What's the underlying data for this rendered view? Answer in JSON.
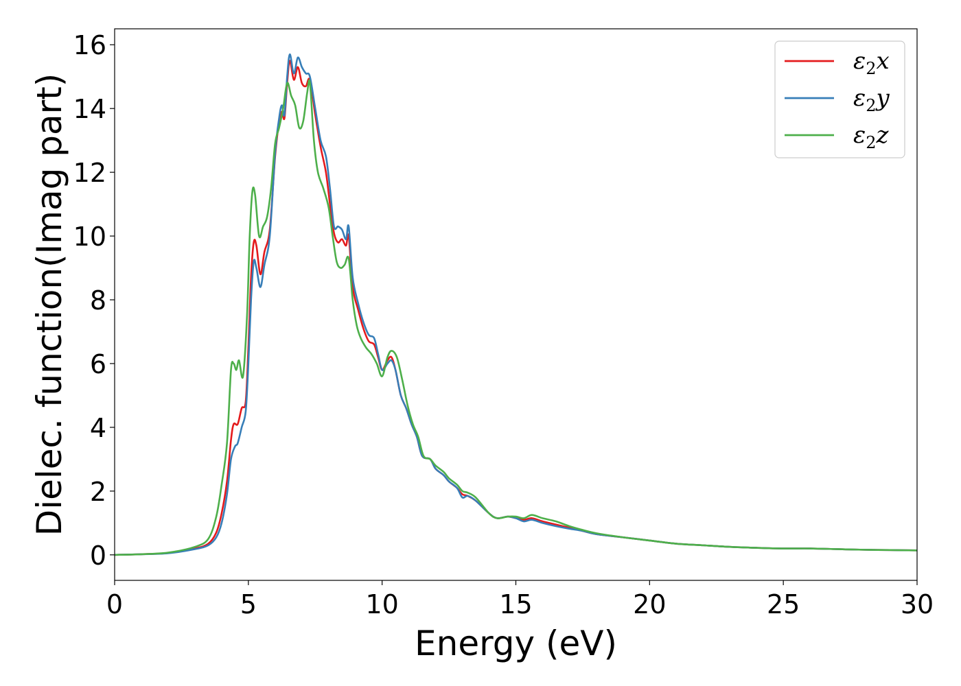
{
  "chart_data": {
    "type": "line",
    "xlabel": "Energy (eV)",
    "ylabel": "Dielec. function(Imag part)",
    "xlim": [
      0,
      30
    ],
    "ylim": [
      -0.8,
      16.5
    ],
    "xticks": [
      0,
      5,
      10,
      15,
      20,
      25,
      30
    ],
    "yticks": [
      0,
      2,
      4,
      6,
      8,
      10,
      12,
      14,
      16
    ],
    "grid": false,
    "legend_position": "top-right",
    "series": [
      {
        "name": "ε2x",
        "legend_base": "ε",
        "legend_sub": "2",
        "legend_suffix": "x",
        "color": "#e41a1c",
        "points": [
          [
            0,
            0
          ],
          [
            1,
            0.02
          ],
          [
            2,
            0.06
          ],
          [
            3,
            0.2
          ],
          [
            3.5,
            0.35
          ],
          [
            3.8,
            0.7
          ],
          [
            4.0,
            1.3
          ],
          [
            4.2,
            2.3
          ],
          [
            4.35,
            3.6
          ],
          [
            4.45,
            4.1
          ],
          [
            4.6,
            4.1
          ],
          [
            4.75,
            4.6
          ],
          [
            4.9,
            4.8
          ],
          [
            5.0,
            6.5
          ],
          [
            5.1,
            8.7
          ],
          [
            5.2,
            9.8
          ],
          [
            5.3,
            9.7
          ],
          [
            5.45,
            8.8
          ],
          [
            5.6,
            9.5
          ],
          [
            5.8,
            10.2
          ],
          [
            6.0,
            12.5
          ],
          [
            6.15,
            13.6
          ],
          [
            6.25,
            13.9
          ],
          [
            6.35,
            13.7
          ],
          [
            6.45,
            14.8
          ],
          [
            6.55,
            15.5
          ],
          [
            6.7,
            14.9
          ],
          [
            6.85,
            15.3
          ],
          [
            7.0,
            14.8
          ],
          [
            7.15,
            14.7
          ],
          [
            7.3,
            14.9
          ],
          [
            7.5,
            13.8
          ],
          [
            7.7,
            12.8
          ],
          [
            7.9,
            12.0
          ],
          [
            8.05,
            11.0
          ],
          [
            8.2,
            10.1
          ],
          [
            8.35,
            9.8
          ],
          [
            8.5,
            9.9
          ],
          [
            8.65,
            9.7
          ],
          [
            8.75,
            10.0
          ],
          [
            8.9,
            8.4
          ],
          [
            9.1,
            7.7
          ],
          [
            9.3,
            7.1
          ],
          [
            9.5,
            6.7
          ],
          [
            9.7,
            6.6
          ],
          [
            9.85,
            6.2
          ],
          [
            10.0,
            5.8
          ],
          [
            10.2,
            6.1
          ],
          [
            10.35,
            6.2
          ],
          [
            10.5,
            5.8
          ],
          [
            10.7,
            5.0
          ],
          [
            10.9,
            4.6
          ],
          [
            11.1,
            4.1
          ],
          [
            11.3,
            3.7
          ],
          [
            11.5,
            3.1
          ],
          [
            11.8,
            3.0
          ],
          [
            12.0,
            2.7
          ],
          [
            12.3,
            2.5
          ],
          [
            12.5,
            2.3
          ],
          [
            12.8,
            2.1
          ],
          [
            13.0,
            1.9
          ],
          [
            13.2,
            1.85
          ],
          [
            13.5,
            1.7
          ],
          [
            14.0,
            1.3
          ],
          [
            14.3,
            1.15
          ],
          [
            14.7,
            1.2
          ],
          [
            15.0,
            1.15
          ],
          [
            15.3,
            1.1
          ],
          [
            15.6,
            1.15
          ],
          [
            16.0,
            1.05
          ],
          [
            16.5,
            0.95
          ],
          [
            17.0,
            0.85
          ],
          [
            17.5,
            0.75
          ],
          [
            18.0,
            0.65
          ],
          [
            19.0,
            0.55
          ],
          [
            20.0,
            0.45
          ],
          [
            21.0,
            0.35
          ],
          [
            22.0,
            0.3
          ],
          [
            23.0,
            0.25
          ],
          [
            24.0,
            0.22
          ],
          [
            25.0,
            0.2
          ],
          [
            26.0,
            0.2
          ],
          [
            27.0,
            0.18
          ],
          [
            28.0,
            0.16
          ],
          [
            29.0,
            0.15
          ],
          [
            30.0,
            0.14
          ]
        ]
      },
      {
        "name": "ε2y",
        "legend_base": "ε",
        "legend_sub": "2",
        "legend_suffix": "y",
        "color": "#377eb8",
        "points": [
          [
            0,
            0
          ],
          [
            1,
            0.02
          ],
          [
            2,
            0.05
          ],
          [
            3,
            0.18
          ],
          [
            3.5,
            0.3
          ],
          [
            3.8,
            0.55
          ],
          [
            4.0,
            1.0
          ],
          [
            4.2,
            1.9
          ],
          [
            4.35,
            3.0
          ],
          [
            4.5,
            3.4
          ],
          [
            4.6,
            3.5
          ],
          [
            4.75,
            4.0
          ],
          [
            4.9,
            4.5
          ],
          [
            5.0,
            6.0
          ],
          [
            5.1,
            8.0
          ],
          [
            5.2,
            9.2
          ],
          [
            5.3,
            9.0
          ],
          [
            5.45,
            8.4
          ],
          [
            5.6,
            9.1
          ],
          [
            5.8,
            10.0
          ],
          [
            6.0,
            12.6
          ],
          [
            6.15,
            13.7
          ],
          [
            6.25,
            14.1
          ],
          [
            6.35,
            13.8
          ],
          [
            6.45,
            15.0
          ],
          [
            6.55,
            15.7
          ],
          [
            6.7,
            15.1
          ],
          [
            6.85,
            15.6
          ],
          [
            7.0,
            15.3
          ],
          [
            7.15,
            15.1
          ],
          [
            7.3,
            15.0
          ],
          [
            7.5,
            14.0
          ],
          [
            7.7,
            13.0
          ],
          [
            7.9,
            12.5
          ],
          [
            8.05,
            11.5
          ],
          [
            8.2,
            10.3
          ],
          [
            8.35,
            10.3
          ],
          [
            8.5,
            10.2
          ],
          [
            8.65,
            9.9
          ],
          [
            8.75,
            10.3
          ],
          [
            8.9,
            8.7
          ],
          [
            9.1,
            7.9
          ],
          [
            9.3,
            7.3
          ],
          [
            9.5,
            6.9
          ],
          [
            9.7,
            6.8
          ],
          [
            9.85,
            6.3
          ],
          [
            10.0,
            5.8
          ],
          [
            10.2,
            6.0
          ],
          [
            10.35,
            6.1
          ],
          [
            10.5,
            5.8
          ],
          [
            10.7,
            5.0
          ],
          [
            10.9,
            4.6
          ],
          [
            11.1,
            4.1
          ],
          [
            11.3,
            3.7
          ],
          [
            11.5,
            3.1
          ],
          [
            11.8,
            3.0
          ],
          [
            12.0,
            2.7
          ],
          [
            12.3,
            2.5
          ],
          [
            12.5,
            2.3
          ],
          [
            12.8,
            2.1
          ],
          [
            13.0,
            1.8
          ],
          [
            13.2,
            1.85
          ],
          [
            13.5,
            1.7
          ],
          [
            14.0,
            1.3
          ],
          [
            14.3,
            1.15
          ],
          [
            14.7,
            1.2
          ],
          [
            15.0,
            1.15
          ],
          [
            15.3,
            1.05
          ],
          [
            15.6,
            1.1
          ],
          [
            16.0,
            1.0
          ],
          [
            16.5,
            0.9
          ],
          [
            17.0,
            0.82
          ],
          [
            17.5,
            0.75
          ],
          [
            18.0,
            0.65
          ],
          [
            19.0,
            0.55
          ],
          [
            20.0,
            0.45
          ],
          [
            21.0,
            0.35
          ],
          [
            22.0,
            0.3
          ],
          [
            23.0,
            0.25
          ],
          [
            24.0,
            0.22
          ],
          [
            25.0,
            0.2
          ],
          [
            26.0,
            0.2
          ],
          [
            27.0,
            0.18
          ],
          [
            28.0,
            0.16
          ],
          [
            29.0,
            0.15
          ],
          [
            30.0,
            0.14
          ]
        ]
      },
      {
        "name": "ε2z",
        "legend_base": "ε",
        "legend_sub": "2",
        "legend_suffix": "z",
        "color": "#4daf4a",
        "points": [
          [
            0,
            0
          ],
          [
            1,
            0.02
          ],
          [
            2,
            0.07
          ],
          [
            3,
            0.25
          ],
          [
            3.5,
            0.5
          ],
          [
            3.8,
            1.2
          ],
          [
            4.0,
            2.2
          ],
          [
            4.2,
            3.5
          ],
          [
            4.35,
            5.8
          ],
          [
            4.45,
            6.0
          ],
          [
            4.55,
            5.8
          ],
          [
            4.65,
            6.1
          ],
          [
            4.8,
            5.6
          ],
          [
            4.95,
            7.5
          ],
          [
            5.05,
            10.0
          ],
          [
            5.15,
            11.4
          ],
          [
            5.25,
            11.3
          ],
          [
            5.4,
            10.0
          ],
          [
            5.55,
            10.3
          ],
          [
            5.7,
            10.6
          ],
          [
            5.85,
            11.5
          ],
          [
            6.0,
            12.9
          ],
          [
            6.15,
            13.4
          ],
          [
            6.3,
            14.0
          ],
          [
            6.45,
            14.8
          ],
          [
            6.6,
            14.4
          ],
          [
            6.75,
            14.1
          ],
          [
            6.9,
            13.4
          ],
          [
            7.05,
            13.6
          ],
          [
            7.2,
            14.5
          ],
          [
            7.3,
            14.8
          ],
          [
            7.45,
            13.0
          ],
          [
            7.6,
            12.0
          ],
          [
            7.8,
            11.5
          ],
          [
            8.0,
            10.9
          ],
          [
            8.15,
            10.0
          ],
          [
            8.3,
            9.2
          ],
          [
            8.45,
            9.0
          ],
          [
            8.6,
            9.1
          ],
          [
            8.75,
            9.3
          ],
          [
            8.9,
            8.0
          ],
          [
            9.05,
            7.2
          ],
          [
            9.2,
            6.8
          ],
          [
            9.4,
            6.5
          ],
          [
            9.6,
            6.3
          ],
          [
            9.8,
            6.0
          ],
          [
            10.0,
            5.6
          ],
          [
            10.2,
            6.2
          ],
          [
            10.35,
            6.4
          ],
          [
            10.55,
            6.2
          ],
          [
            10.75,
            5.5
          ],
          [
            10.95,
            4.7
          ],
          [
            11.15,
            4.1
          ],
          [
            11.35,
            3.7
          ],
          [
            11.55,
            3.1
          ],
          [
            11.8,
            3.0
          ],
          [
            12.0,
            2.8
          ],
          [
            12.3,
            2.6
          ],
          [
            12.5,
            2.4
          ],
          [
            12.8,
            2.2
          ],
          [
            13.0,
            2.0
          ],
          [
            13.2,
            1.95
          ],
          [
            13.5,
            1.8
          ],
          [
            14.0,
            1.3
          ],
          [
            14.3,
            1.15
          ],
          [
            14.7,
            1.2
          ],
          [
            15.0,
            1.2
          ],
          [
            15.3,
            1.15
          ],
          [
            15.6,
            1.25
          ],
          [
            16.0,
            1.15
          ],
          [
            16.5,
            1.05
          ],
          [
            17.0,
            0.9
          ],
          [
            17.5,
            0.78
          ],
          [
            18.0,
            0.68
          ],
          [
            19.0,
            0.55
          ],
          [
            20.0,
            0.45
          ],
          [
            21.0,
            0.35
          ],
          [
            22.0,
            0.3
          ],
          [
            23.0,
            0.25
          ],
          [
            24.0,
            0.22
          ],
          [
            25.0,
            0.2
          ],
          [
            26.0,
            0.2
          ],
          [
            27.0,
            0.18
          ],
          [
            28.0,
            0.16
          ],
          [
            29.0,
            0.15
          ],
          [
            30.0,
            0.14
          ]
        ]
      }
    ]
  }
}
